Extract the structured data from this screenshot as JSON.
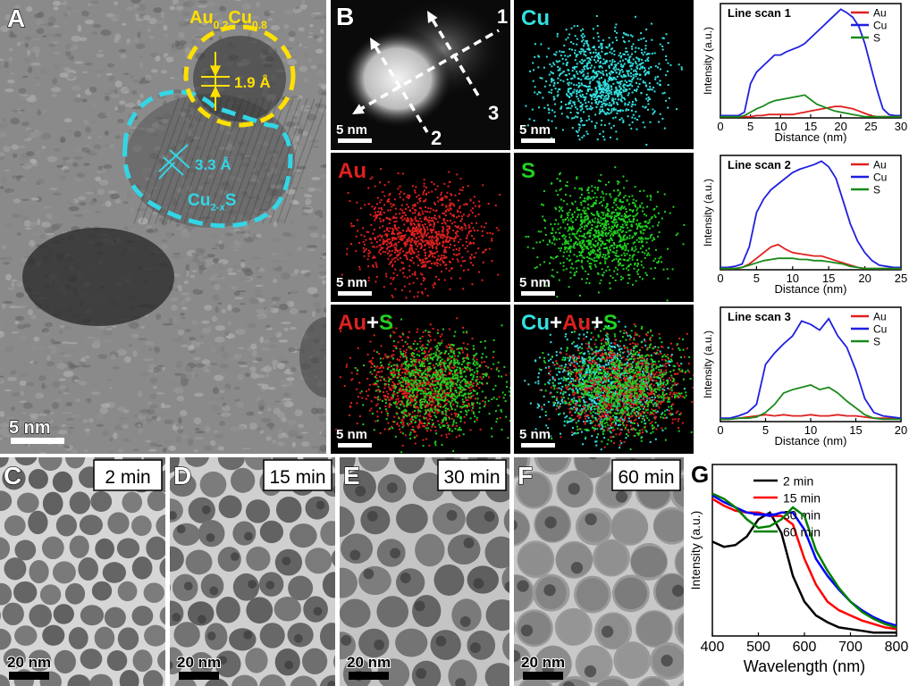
{
  "panel_a": {
    "label": "A",
    "formula_1": [
      "Au",
      "0.2",
      "Cu",
      "0.8"
    ],
    "spacing_1": "1.9 Å",
    "spacing_2": "3.3 Å",
    "formula_2": [
      "Cu",
      "2-x",
      "S"
    ],
    "scale_bar": "5 nm"
  },
  "panel_b": {
    "label": "B",
    "scan_numbers": [
      "1",
      "2",
      "3"
    ],
    "haadf_scale_bar": "5 nm",
    "maps": [
      {
        "parts": [
          {
            "text": "Cu",
            "color": "#33e0e0"
          }
        ],
        "scale_bar": "5 nm"
      },
      {
        "parts": [
          {
            "text": "Au",
            "color": "#e02020"
          }
        ],
        "scale_bar": "5 nm"
      },
      {
        "parts": [
          {
            "text": "S",
            "color": "#20d020"
          }
        ],
        "scale_bar": "5 nm"
      },
      {
        "parts": [
          {
            "text": "Au",
            "color": "#e02020"
          },
          {
            "text": "+",
            "color": "#ffffff"
          },
          {
            "text": "S",
            "color": "#20d020"
          }
        ],
        "scale_bar": "5 nm"
      },
      {
        "parts": [
          {
            "text": "Cu",
            "color": "#33e0e0"
          },
          {
            "text": "+",
            "color": "#ffffff"
          },
          {
            "text": "Au",
            "color": "#e02020"
          },
          {
            "text": "+",
            "color": "#ffffff"
          },
          {
            "text": "S",
            "color": "#20d020"
          }
        ],
        "scale_bar": "5 nm"
      }
    ]
  },
  "panels_tem": [
    {
      "label": "C",
      "time": "2 min",
      "scale_bar": "20 nm"
    },
    {
      "label": "D",
      "time": "15 min",
      "scale_bar": "20 nm"
    },
    {
      "label": "E",
      "time": "30 min",
      "scale_bar": "20 nm"
    },
    {
      "label": "F",
      "time": "60 min",
      "scale_bar": "20 nm"
    }
  ],
  "chart_data": [
    {
      "type": "line",
      "title": "Line scan 1",
      "xlabel": "Distance (nm)",
      "ylabel": "Intensity (a.u.)",
      "legend": "upper right",
      "x": [
        0,
        1,
        2,
        3,
        4,
        5,
        6,
        7,
        8,
        9,
        10,
        11,
        12,
        13,
        14,
        15,
        16,
        17,
        18,
        19,
        20,
        21,
        22,
        23,
        24,
        25,
        26,
        27,
        28,
        29,
        30
      ],
      "xlim": [
        0,
        30
      ],
      "xticks": [
        0,
        5,
        10,
        15,
        20,
        25,
        30
      ],
      "ylim": [
        0,
        100
      ],
      "series": [
        {
          "name": "Au",
          "color": "#e02020",
          "values": [
            1,
            1,
            1,
            1,
            1,
            1,
            2,
            2,
            3,
            3,
            3,
            3,
            3,
            4,
            5,
            6,
            7,
            8,
            9,
            10,
            10,
            9,
            8,
            6,
            4,
            2,
            1,
            1,
            1,
            1,
            1
          ]
        },
        {
          "name": "Cu",
          "color": "#1f1fe0",
          "values": [
            2,
            2,
            2,
            2,
            5,
            30,
            40,
            45,
            50,
            55,
            55,
            58,
            60,
            62,
            65,
            70,
            75,
            80,
            85,
            90,
            95,
            92,
            88,
            80,
            65,
            45,
            25,
            8,
            3,
            2,
            2
          ]
        },
        {
          "name": "S",
          "color": "#1a8a1a",
          "values": [
            1,
            1,
            1,
            1,
            2,
            5,
            8,
            10,
            13,
            15,
            16,
            17,
            18,
            19,
            20,
            16,
            12,
            10,
            8,
            6,
            5,
            4,
            3,
            2,
            1,
            1,
            1,
            1,
            1,
            1,
            1
          ]
        }
      ]
    },
    {
      "type": "line",
      "title": "Line scan 2",
      "xlabel": "Distance (nm)",
      "ylabel": "Intensity (a.u.)",
      "legend": "upper right",
      "x": [
        0,
        1,
        2,
        3,
        4,
        5,
        6,
        7,
        8,
        9,
        10,
        11,
        12,
        13,
        14,
        15,
        16,
        17,
        18,
        19,
        20,
        21,
        22,
        23,
        24,
        25
      ],
      "xlim": [
        0,
        25
      ],
      "xticks": [
        0,
        5,
        10,
        15,
        20,
        25
      ],
      "ylim": [
        0,
        100
      ],
      "series": [
        {
          "name": "Au",
          "color": "#e02020",
          "values": [
            1,
            1,
            1,
            2,
            5,
            10,
            15,
            20,
            22,
            18,
            15,
            14,
            13,
            12,
            12,
            10,
            8,
            6,
            4,
            2,
            1,
            1,
            1,
            1,
            1,
            1
          ]
        },
        {
          "name": "Cu",
          "color": "#1f1fe0",
          "values": [
            2,
            2,
            3,
            5,
            20,
            50,
            62,
            70,
            75,
            80,
            85,
            88,
            90,
            92,
            95,
            90,
            80,
            60,
            40,
            25,
            15,
            8,
            4,
            3,
            2,
            2
          ]
        },
        {
          "name": "S",
          "color": "#1a8a1a",
          "values": [
            1,
            1,
            1,
            2,
            4,
            6,
            8,
            9,
            10,
            10,
            10,
            9,
            9,
            8,
            8,
            7,
            6,
            5,
            3,
            2,
            1,
            1,
            1,
            1,
            1,
            1
          ]
        }
      ]
    },
    {
      "type": "line",
      "title": "Line scan 3",
      "xlabel": "Distance (nm)",
      "ylabel": "Intensity (a.u.)",
      "legend": "upper right",
      "x": [
        0,
        1,
        2,
        3,
        4,
        5,
        6,
        7,
        8,
        9,
        10,
        11,
        12,
        13,
        14,
        15,
        16,
        17,
        18,
        19,
        20
      ],
      "xlim": [
        0,
        20
      ],
      "xticks": [
        0,
        5,
        10,
        15,
        20
      ],
      "ylim": [
        0,
        100
      ],
      "series": [
        {
          "name": "Au",
          "color": "#e02020",
          "values": [
            2,
            2,
            3,
            4,
            5,
            6,
            5,
            6,
            5,
            5,
            6,
            5,
            5,
            6,
            5,
            5,
            4,
            3,
            3,
            3,
            2
          ]
        },
        {
          "name": "Cu",
          "color": "#1f1fe0",
          "values": [
            3,
            3,
            5,
            8,
            15,
            50,
            60,
            68,
            75,
            88,
            85,
            80,
            90,
            75,
            65,
            45,
            20,
            8,
            5,
            4,
            3
          ]
        },
        {
          "name": "S",
          "color": "#1a8a1a",
          "values": [
            2,
            2,
            3,
            3,
            4,
            8,
            15,
            25,
            28,
            30,
            32,
            28,
            30,
            25,
            18,
            12,
            6,
            3,
            2,
            2,
            2
          ]
        }
      ]
    },
    {
      "type": "line",
      "label": "G",
      "xlabel": "Wavelength (nm)",
      "ylabel": "Intensity (a.u.)",
      "legend": "upper right",
      "x": [
        400,
        425,
        450,
        475,
        500,
        525,
        550,
        575,
        600,
        625,
        650,
        675,
        700,
        725,
        750,
        775,
        800
      ],
      "xlim": [
        400,
        800
      ],
      "xticks": [
        400,
        500,
        600,
        700,
        800
      ],
      "ylim": [
        0,
        100
      ],
      "series": [
        {
          "name": "2 min",
          "color": "#000000",
          "values": [
            55,
            52,
            53,
            58,
            68,
            72,
            60,
            35,
            20,
            12,
            8,
            5,
            4,
            3,
            2,
            2,
            2
          ]
        },
        {
          "name": "15 min",
          "color": "#ff0000",
          "values": [
            80,
            76,
            73,
            72,
            72,
            70,
            70,
            65,
            45,
            30,
            20,
            15,
            12,
            9,
            7,
            5,
            4
          ]
        },
        {
          "name": "30 min",
          "color": "#0000ff",
          "values": [
            82,
            78,
            75,
            72,
            71,
            70,
            72,
            72,
            62,
            45,
            35,
            27,
            20,
            15,
            11,
            8,
            6
          ]
        },
        {
          "name": "60 min",
          "color": "#008000",
          "values": [
            83,
            80,
            75,
            68,
            63,
            64,
            68,
            75,
            70,
            50,
            38,
            28,
            20,
            14,
            10,
            7,
            5
          ]
        }
      ]
    }
  ]
}
